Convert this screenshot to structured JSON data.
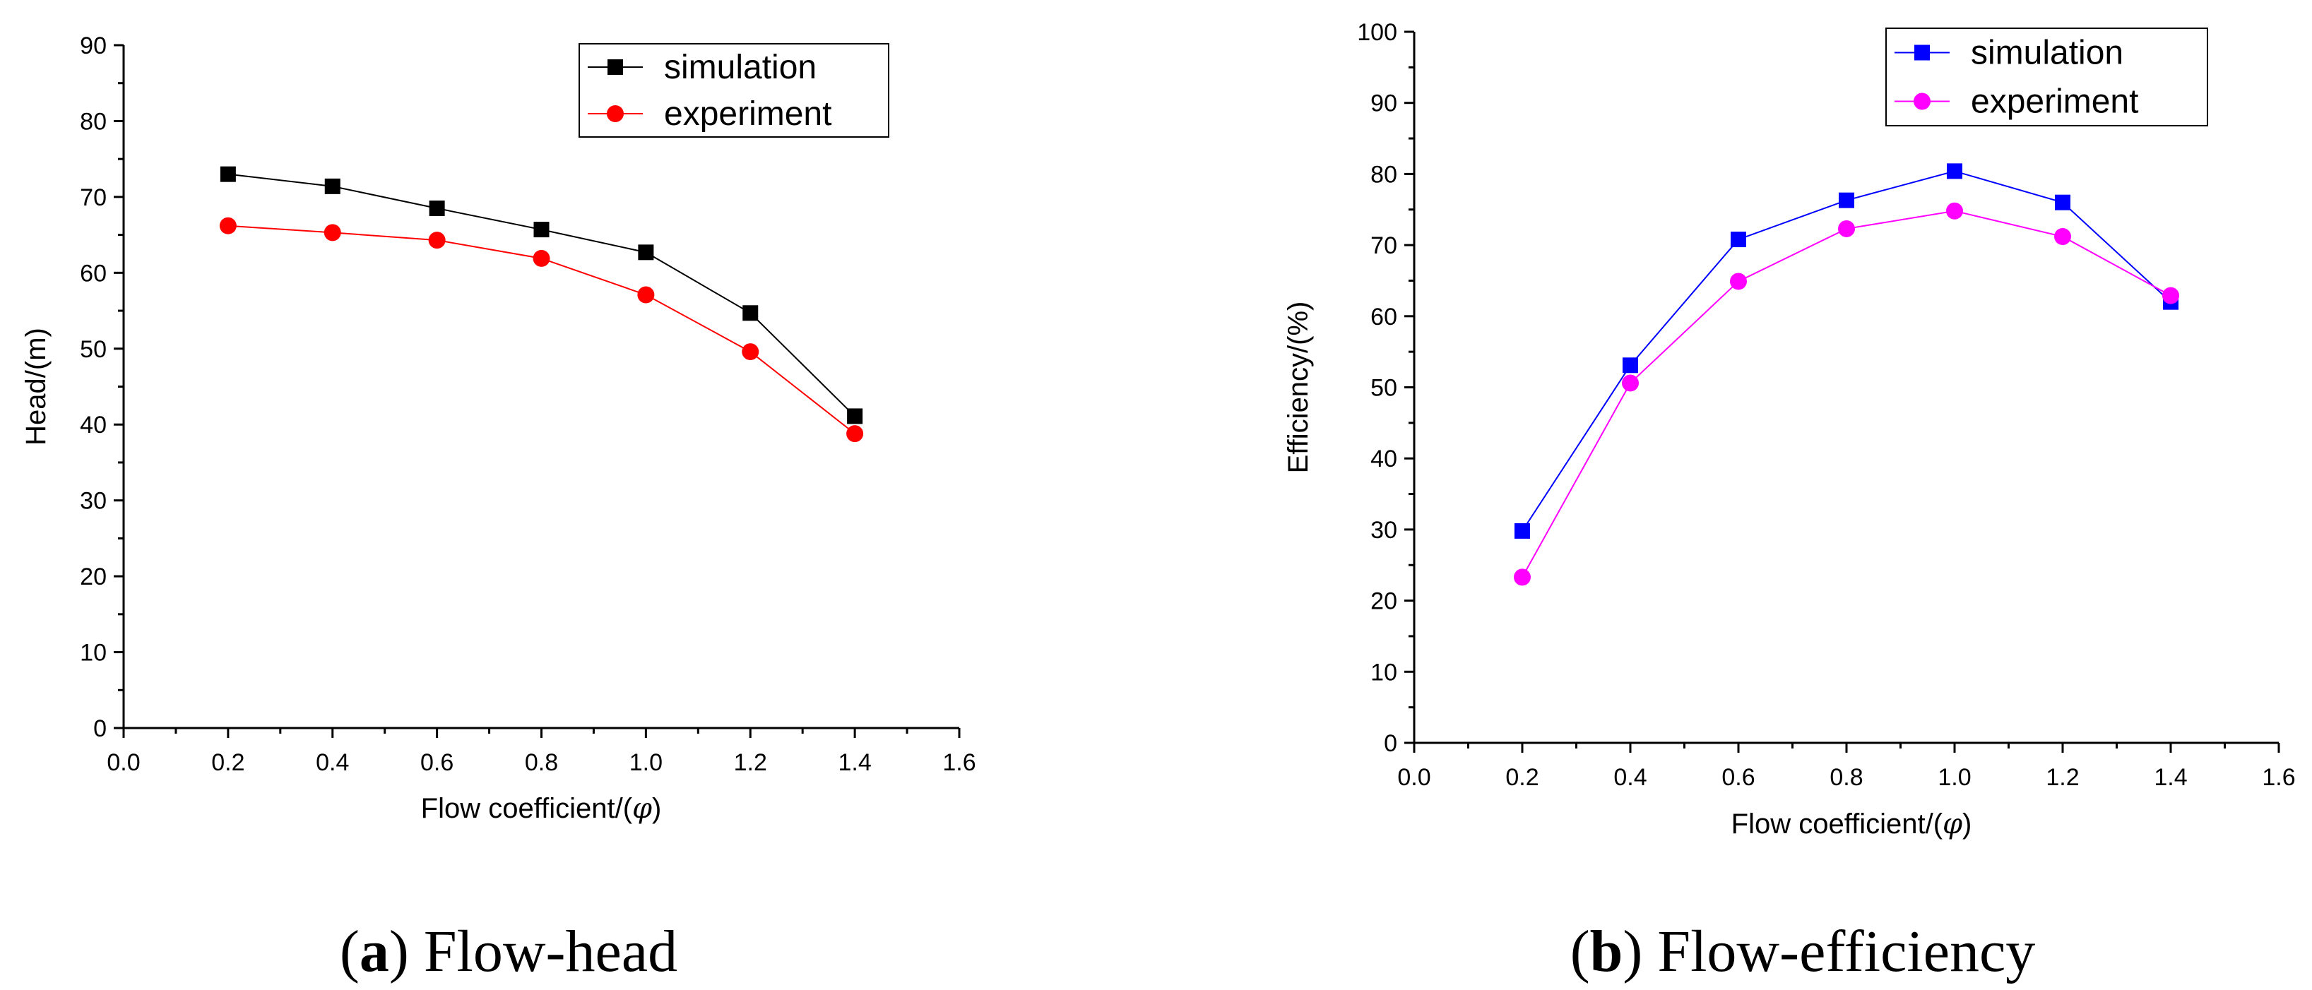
{
  "chart_data": [
    {
      "type": "line",
      "id": "a",
      "xlabel_prefix": "Flow coefficient/(",
      "xlabel_symbol": "φ",
      "xlabel_suffix": ")",
      "ylabel": "Head/(m)",
      "xlim": [
        0.0,
        1.6
      ],
      "ylim": [
        0,
        90
      ],
      "xticks": [
        "0.0",
        "0.2",
        "0.4",
        "0.6",
        "0.8",
        "1.0",
        "1.2",
        "1.4",
        "1.6"
      ],
      "xtick_values": [
        0.0,
        0.2,
        0.4,
        0.6,
        0.8,
        1.0,
        1.2,
        1.4,
        1.6
      ],
      "yticks": [
        "0",
        "10",
        "20",
        "30",
        "40",
        "50",
        "60",
        "70",
        "80",
        "90"
      ],
      "ytick_values": [
        0,
        10,
        20,
        30,
        40,
        50,
        60,
        70,
        80,
        90
      ],
      "x": [
        0.2,
        0.4,
        0.6,
        0.8,
        1.0,
        1.2,
        1.4
      ],
      "series": [
        {
          "name": "simulation",
          "marker": "square",
          "color": "#000000",
          "values": [
            73.0,
            71.4,
            68.5,
            65.7,
            62.7,
            54.7,
            41.1
          ]
        },
        {
          "name": "experiment",
          "marker": "circle",
          "color": "#ff0000",
          "values": [
            66.2,
            65.3,
            64.3,
            61.9,
            57.1,
            49.6,
            38.8
          ]
        }
      ],
      "legend_position": "top-right",
      "caption_letter": "a",
      "caption_text": "Flow-head"
    },
    {
      "type": "line",
      "id": "b",
      "xlabel_prefix": "Flow coefficient/(",
      "xlabel_symbol": "φ",
      "xlabel_suffix": ")",
      "ylabel": "Efficiency/(%)",
      "xlim": [
        0.0,
        1.6
      ],
      "ylim": [
        0,
        100
      ],
      "xticks": [
        "0.0",
        "0.2",
        "0.4",
        "0.6",
        "0.8",
        "1.0",
        "1.2",
        "1.4",
        "1.6"
      ],
      "xtick_values": [
        0.0,
        0.2,
        0.4,
        0.6,
        0.8,
        1.0,
        1.2,
        1.4,
        1.6
      ],
      "yticks": [
        "0",
        "10",
        "20",
        "30",
        "40",
        "50",
        "60",
        "70",
        "80",
        "90",
        "100"
      ],
      "ytick_values": [
        0,
        10,
        20,
        30,
        40,
        50,
        60,
        70,
        80,
        90,
        100
      ],
      "x": [
        0.2,
        0.4,
        0.6,
        0.8,
        1.0,
        1.2,
        1.4
      ],
      "series": [
        {
          "name": "simulation",
          "marker": "square",
          "color": "#0000ff",
          "values": [
            29.8,
            53.1,
            70.8,
            76.3,
            80.4,
            76.0,
            62.0
          ]
        },
        {
          "name": "experiment",
          "marker": "circle",
          "color": "#ff00ff",
          "values": [
            23.3,
            50.6,
            64.9,
            72.3,
            74.8,
            71.2,
            62.9
          ]
        }
      ],
      "legend_position": "top-right",
      "caption_letter": "b",
      "caption_text": "Flow-efficiency"
    }
  ]
}
